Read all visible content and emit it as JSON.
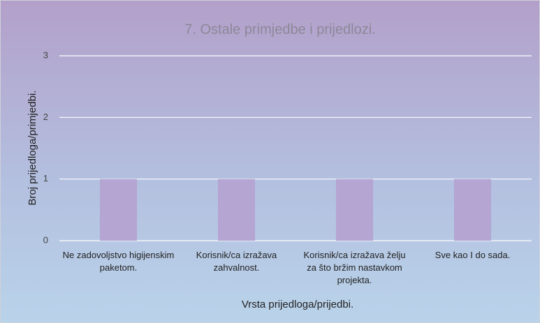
{
  "chart_data": {
    "type": "bar",
    "title": "7. Ostale primjedbe i prijedlozi.",
    "x_label": "Vrsta prijedloga/prijedbi.",
    "y_label": "Broj prijedloga/primjedbi.",
    "categories": [
      "Ne zadovoljstvo higijenskim paketom.",
      "Korisnik/ca izražava zahvalnost.",
      "Korisnik/ca izražava želju za što bržim nastavkom projekta.",
      "Sve kao I do sada."
    ],
    "values": [
      1,
      1,
      1,
      1
    ],
    "color": "#b4a5d2",
    "ylim": [
      0,
      3
    ],
    "yticks": [
      0,
      1,
      2,
      3
    ],
    "grid": true
  }
}
